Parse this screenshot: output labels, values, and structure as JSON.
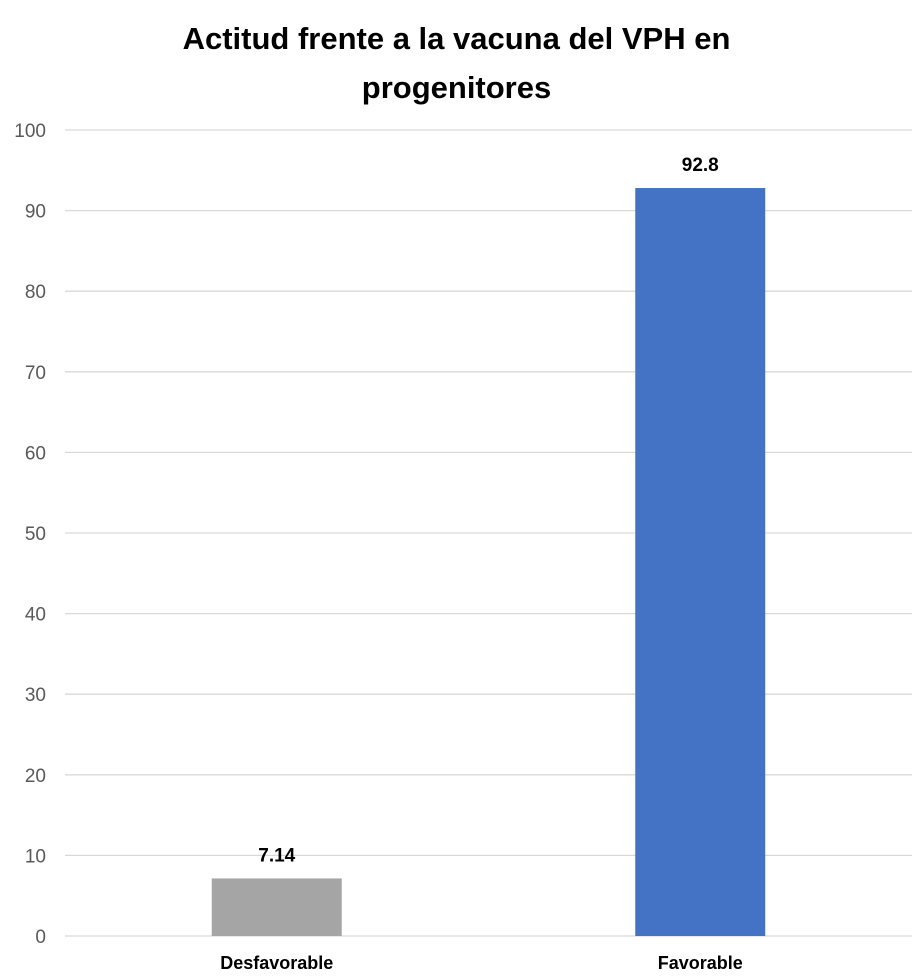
{
  "chart_data": {
    "type": "bar",
    "title": "Actitud frente a la vacuna del VPH en progenitores",
    "xlabel": "",
    "ylabel": "",
    "categories": [
      "Desfavorable",
      "Favorable"
    ],
    "values": [
      7.14,
      92.8
    ],
    "data_labels": [
      "7.14",
      "92.8"
    ],
    "bar_colors": [
      "#a5a5a5",
      "#4472c4"
    ],
    "ylim": [
      0,
      100
    ],
    "yticks": [
      0,
      10,
      20,
      30,
      40,
      50,
      60,
      70,
      80,
      90,
      100
    ],
    "grid": true,
    "legend": "none"
  }
}
